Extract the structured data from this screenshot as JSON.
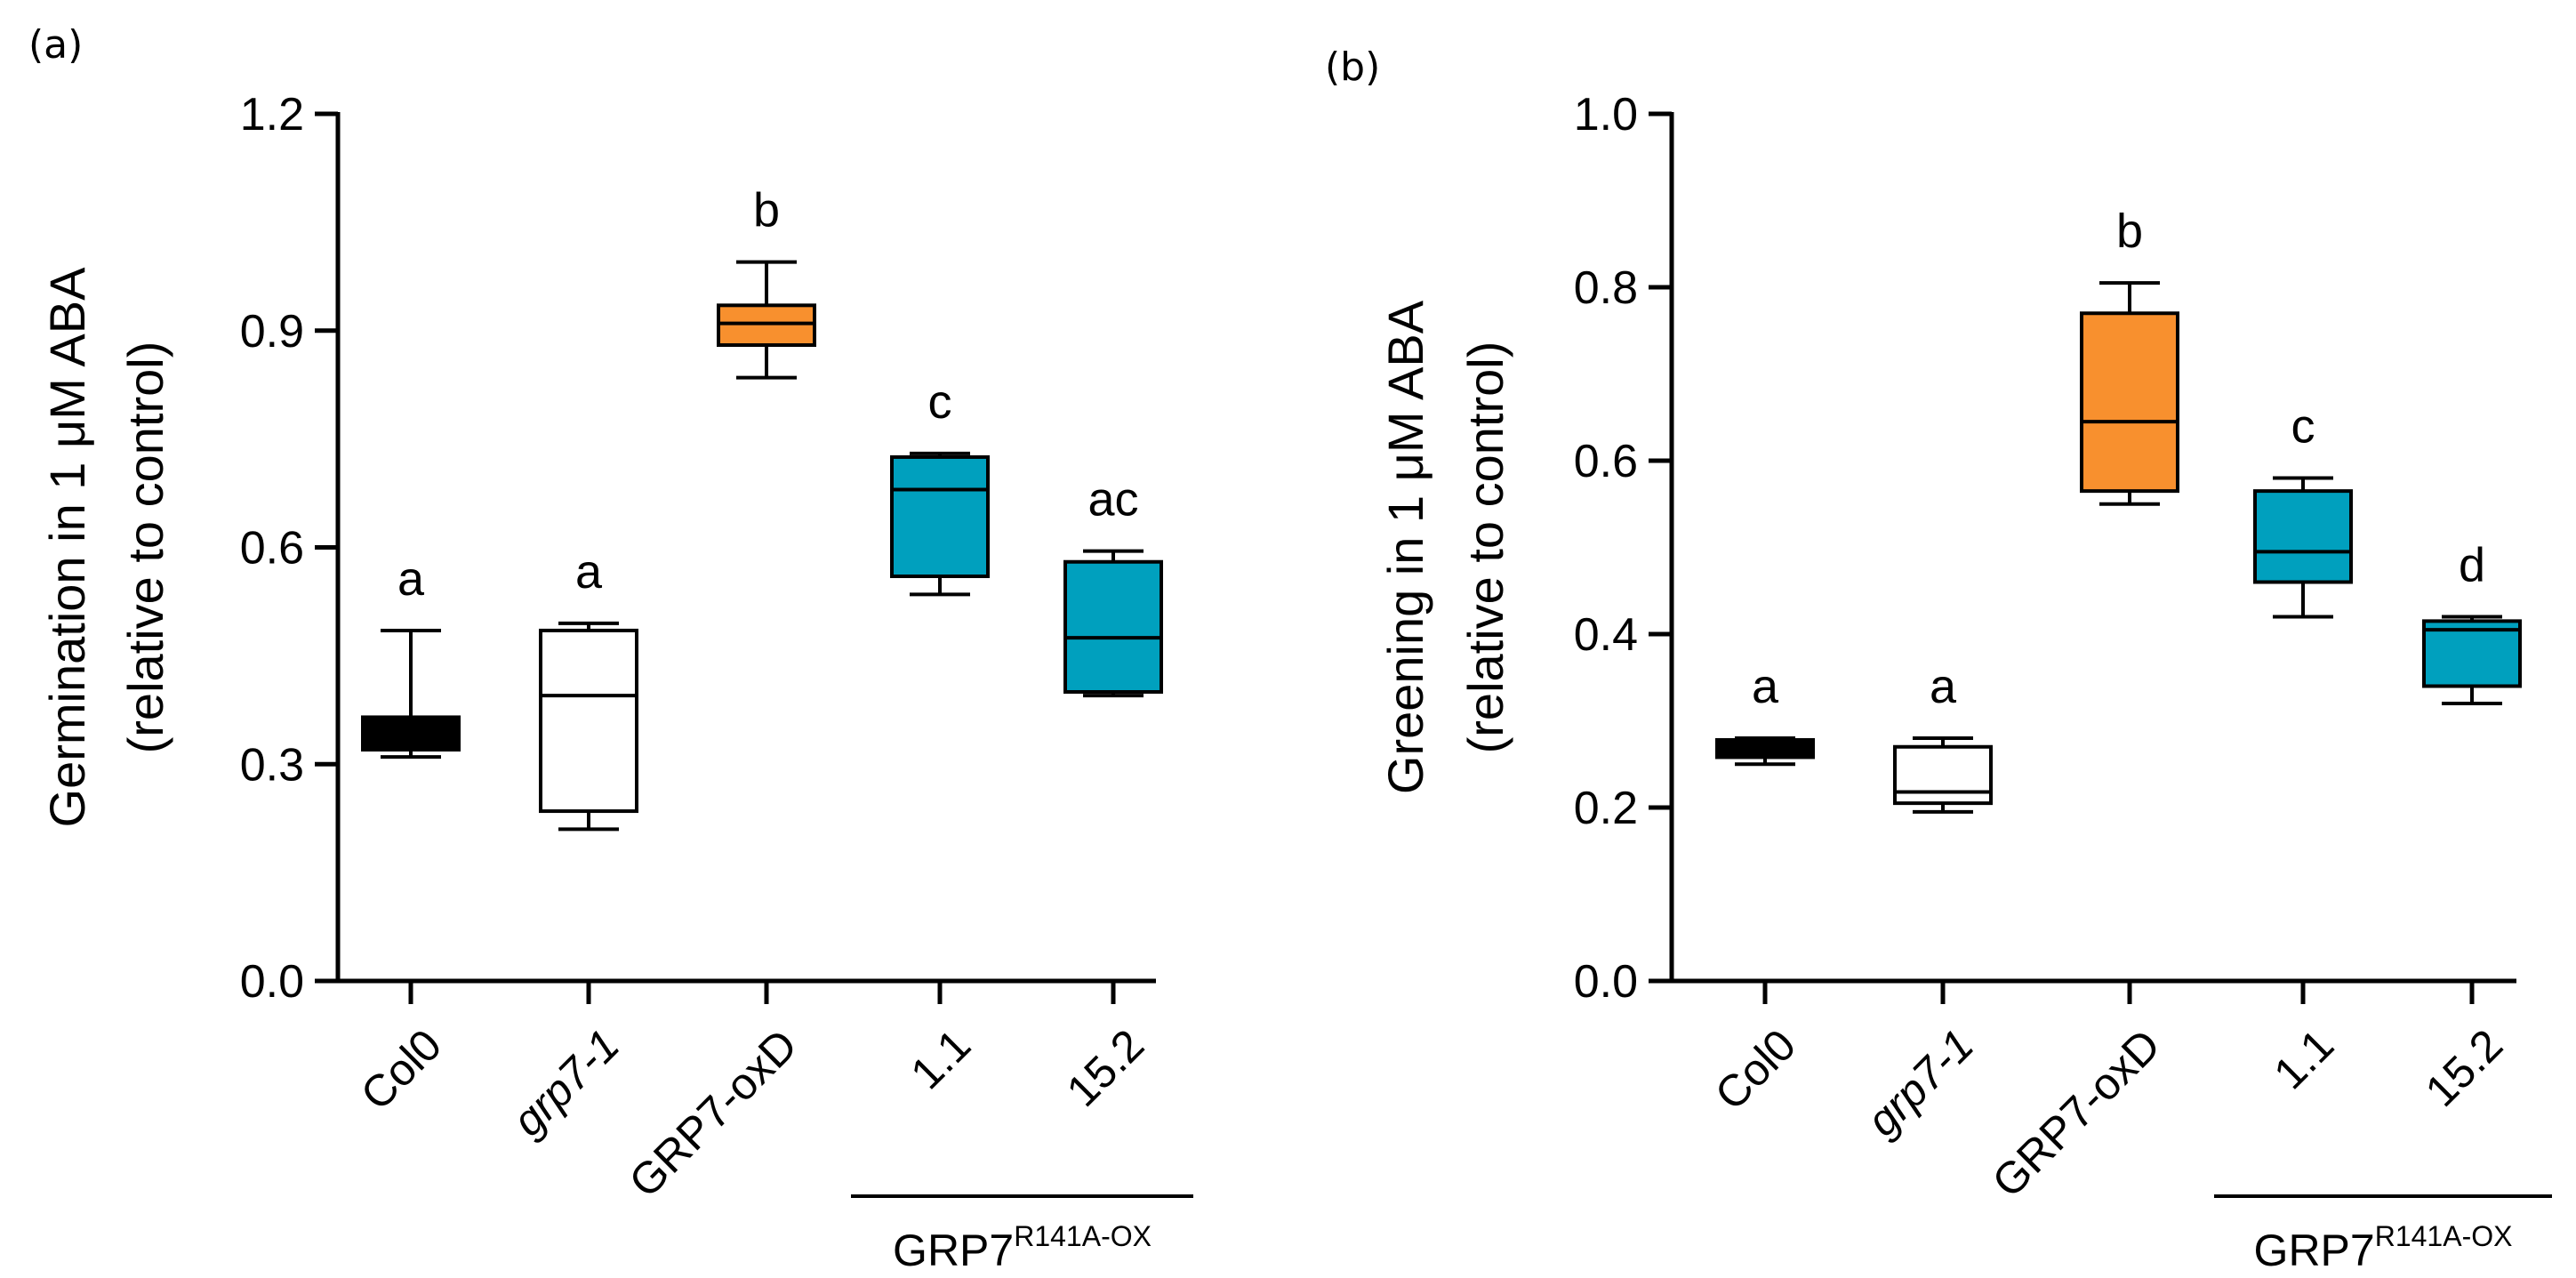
{
  "chart_data": [
    {
      "type": "box",
      "panel_label": "(a)",
      "ylabel_line1": "Germination in 1 μM ABA",
      "ylabel_line2": "(relative to control)",
      "ylim": [
        0,
        1.2
      ],
      "yticks": [
        0.0,
        0.3,
        0.6,
        0.9,
        1.2
      ],
      "ytick_labels": [
        "0.0",
        "0.3",
        "0.6",
        "0.9",
        "1.2"
      ],
      "categories": [
        "Col0",
        "grp7-1",
        "GRP7-oxD",
        "1.1",
        "15.2"
      ],
      "italic_categories": [
        "grp7-1"
      ],
      "group_label": {
        "text": "GRP7",
        "superscript": "R141A-OX",
        "spans": [
          "1.1",
          "15.2"
        ]
      },
      "boxes": [
        {
          "category": "Col0",
          "min": 0.31,
          "q1": 0.32,
          "median": 0.345,
          "q3": 0.365,
          "max": 0.485,
          "color": "#000000",
          "significance": "a"
        },
        {
          "category": "grp7-1",
          "min": 0.21,
          "q1": 0.235,
          "median": 0.395,
          "q3": 0.485,
          "max": 0.495,
          "color": "#ffffff",
          "significance": "a"
        },
        {
          "category": "GRP7-oxD",
          "min": 0.835,
          "q1": 0.88,
          "median": 0.91,
          "q3": 0.935,
          "max": 0.995,
          "color": "#f8902e",
          "significance": "b"
        },
        {
          "category": "1.1",
          "min": 0.535,
          "q1": 0.56,
          "median": 0.68,
          "q3": 0.725,
          "max": 0.73,
          "color": "#00a0be",
          "significance": "c"
        },
        {
          "category": "15.2",
          "min": 0.395,
          "q1": 0.4,
          "median": 0.475,
          "q3": 0.58,
          "max": 0.595,
          "color": "#00a0be",
          "significance": "ac"
        }
      ]
    },
    {
      "type": "box",
      "panel_label": "(b)",
      "ylabel_line1": "Greening in 1 μM ABA",
      "ylabel_line2": "(relative to control)",
      "ylim": [
        0,
        1.0
      ],
      "yticks": [
        0.0,
        0.2,
        0.4,
        0.6,
        0.8,
        1.0
      ],
      "ytick_labels": [
        "0.0",
        "0.2",
        "0.4",
        "0.6",
        "0.8",
        "1.0"
      ],
      "categories": [
        "Col0",
        "grp7-1",
        "GRP7-oxD",
        "1.1",
        "15.2"
      ],
      "italic_categories": [
        "grp7-1"
      ],
      "group_label": {
        "text": "GRP7",
        "superscript": "R141A-OX",
        "spans": [
          "1.1",
          "15.2"
        ]
      },
      "boxes": [
        {
          "category": "Col0",
          "min": 0.25,
          "q1": 0.258,
          "median": 0.268,
          "q3": 0.278,
          "max": 0.28,
          "color": "#000000",
          "significance": "a"
        },
        {
          "category": "grp7-1",
          "min": 0.195,
          "q1": 0.205,
          "median": 0.218,
          "q3": 0.27,
          "max": 0.28,
          "color": "#ffffff",
          "significance": "a"
        },
        {
          "category": "GRP7-oxD",
          "min": 0.55,
          "q1": 0.565,
          "median": 0.645,
          "q3": 0.77,
          "max": 0.805,
          "color": "#f8902e",
          "significance": "b"
        },
        {
          "category": "1.1",
          "min": 0.42,
          "q1": 0.46,
          "median": 0.495,
          "q3": 0.565,
          "max": 0.58,
          "color": "#00a0be",
          "significance": "c"
        },
        {
          "category": "15.2",
          "min": 0.32,
          "q1": 0.34,
          "median": 0.405,
          "q3": 0.415,
          "max": 0.42,
          "color": "#00a0be",
          "significance": "d"
        }
      ]
    }
  ]
}
